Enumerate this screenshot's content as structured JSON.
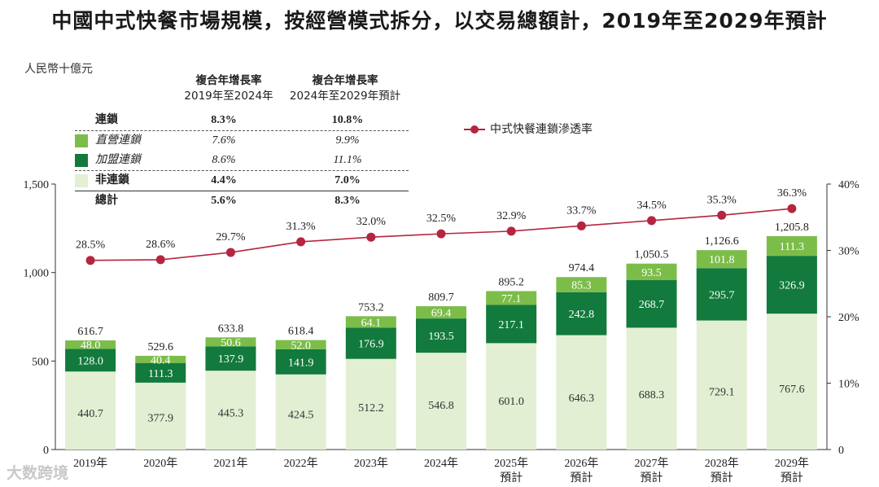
{
  "title": "中國中式快餐市場規模，按經營模式拆分，以交易總額計，2019年至2029年預計",
  "unit_label": "人民幣十億元",
  "cagr_headers": {
    "col1_line1": "複合年增長率",
    "col1_line2": "2019年至2024年",
    "col2_line1": "複合年增長率",
    "col2_line2": "2024年至2029年預計"
  },
  "cagr_rows": [
    {
      "name": "連鎖",
      "cagr_2019_2024": "8.3%",
      "cagr_2024_2029": "10.8%"
    },
    {
      "name": "直營連鎖",
      "cagr_2019_2024": "7.6%",
      "cagr_2024_2029": "9.9%"
    },
    {
      "name": "加盟連鎖",
      "cagr_2019_2024": "8.6%",
      "cagr_2024_2029": "11.1%"
    },
    {
      "name": "非連鎖",
      "cagr_2019_2024": "4.4%",
      "cagr_2024_2029": "7.0%"
    },
    {
      "name": "總計",
      "cagr_2019_2024": "5.6%",
      "cagr_2024_2029": "8.3%"
    }
  ],
  "colors": {
    "non_chain": "#e2efd3",
    "franchise": "#127a3c",
    "direct": "#7cbd4a",
    "line": "#b5253f"
  },
  "watermark": "大数跨境",
  "chart_data": {
    "type": "bar",
    "stacked": true,
    "categories": [
      "2019年",
      "2020年",
      "2021年",
      "2022年",
      "2023年",
      "2024年",
      "2025年",
      "2026年",
      "2027年",
      "2028年",
      "2029年"
    ],
    "category_sublabels": [
      "",
      "",
      "",
      "",
      "",
      "",
      "預計",
      "預計",
      "預計",
      "預計",
      "預計"
    ],
    "series": [
      {
        "name": "非連鎖",
        "values": [
          440.7,
          377.9,
          445.3,
          424.5,
          512.2,
          546.8,
          601.0,
          646.3,
          688.3,
          729.1,
          767.6
        ]
      },
      {
        "name": "加盟連鎖",
        "values": [
          128.0,
          111.3,
          137.9,
          141.9,
          176.9,
          193.5,
          217.1,
          242.8,
          268.7,
          295.7,
          326.9
        ]
      },
      {
        "name": "直營連鎖",
        "values": [
          48.0,
          40.4,
          50.6,
          52.0,
          64.1,
          69.4,
          77.1,
          85.3,
          93.5,
          101.8,
          111.3
        ]
      }
    ],
    "totals": [
      616.7,
      529.6,
      633.8,
      618.4,
      753.2,
      809.7,
      895.2,
      974.4,
      1050.5,
      1126.6,
      1205.8
    ],
    "line_series": {
      "name": "中式快餐連鎖滲透率",
      "values": [
        28.5,
        28.6,
        29.7,
        31.3,
        32.0,
        32.5,
        32.9,
        33.7,
        34.5,
        35.3,
        36.3
      ],
      "labels": [
        "28.5%",
        "28.6%",
        "29.7%",
        "31.3%",
        "32.0%",
        "32.5%",
        "32.9%",
        "33.7%",
        "34.5%",
        "35.3%",
        "36.3%"
      ]
    },
    "y_left": {
      "min": 0,
      "max": 1500,
      "ticks": [
        0,
        500,
        1000,
        1500
      ],
      "tick_labels": [
        "0",
        "500",
        "1,000",
        "1,500"
      ]
    },
    "y_right": {
      "min": 0,
      "max": 40,
      "ticks": [
        0,
        10,
        20,
        30,
        40
      ],
      "tick_labels": [
        "0",
        "10%",
        "20%",
        "30%",
        "40%"
      ]
    }
  }
}
